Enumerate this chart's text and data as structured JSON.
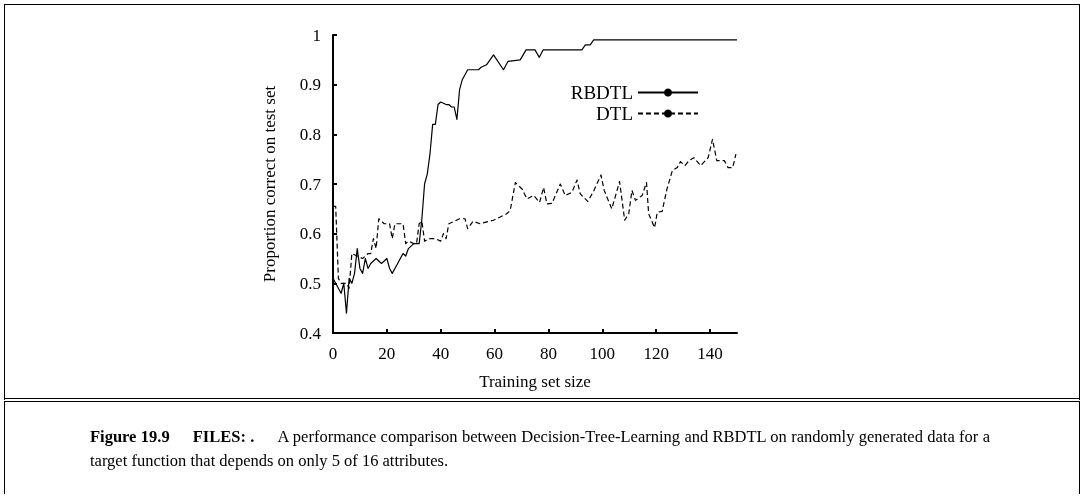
{
  "chart_data": {
    "type": "line",
    "xlabel": "Training set size",
    "ylabel": "Proportion correct on test set",
    "xlim": [
      0,
      150
    ],
    "xticks": [
      0,
      20,
      40,
      60,
      80,
      100,
      120,
      140
    ],
    "ylim": [
      0.4,
      1
    ],
    "yticks": [
      0.4,
      0.5,
      0.6,
      0.7,
      0.8,
      0.9,
      1
    ],
    "grid": false,
    "legend": "top right",
    "marker": "none",
    "series": [
      {
        "name": "RBDTL",
        "color": "#000000",
        "line_style": "solid",
        "x": [
          0,
          2,
          3,
          4,
          5,
          6,
          7,
          8,
          9,
          10,
          11,
          12,
          13,
          14,
          16,
          18,
          20,
          21,
          22,
          24,
          25,
          26,
          27,
          28,
          30,
          32,
          33,
          34,
          35,
          36,
          37,
          38,
          39,
          40,
          42,
          43,
          44,
          45,
          46,
          47,
          48,
          50,
          52,
          54,
          55,
          57,
          59.6,
          63.3,
          65,
          69.5,
          71.7,
          75,
          76.6,
          78,
          92.4,
          93.7,
          95.5,
          96.8,
          150
        ],
        "values": [
          0.51,
          0.49,
          0.48,
          0.5,
          0.44,
          0.51,
          0.5,
          0.52,
          0.57,
          0.53,
          0.52,
          0.55,
          0.53,
          0.54,
          0.55,
          0.54,
          0.55,
          0.53,
          0.52,
          0.54,
          0.55,
          0.56,
          0.555,
          0.57,
          0.58,
          0.58,
          0.63,
          0.7,
          0.72,
          0.76,
          0.82,
          0.82,
          0.86,
          0.865,
          0.86,
          0.86,
          0.855,
          0.855,
          0.83,
          0.89,
          0.91,
          0.93,
          0.93,
          0.93,
          0.935,
          0.94,
          0.96,
          0.93,
          0.947,
          0.95,
          0.97,
          0.97,
          0.955,
          0.97,
          0.97,
          0.98,
          0.98,
          0.99,
          0.99
        ]
      },
      {
        "name": "DTL",
        "color": "#000000",
        "line_style": "dashed",
        "x": [
          0,
          1,
          2,
          3,
          5,
          6,
          7,
          9,
          11,
          13,
          14,
          15,
          16,
          17,
          19,
          21,
          22,
          23,
          25,
          26,
          27,
          28,
          30,
          31,
          32,
          33,
          34,
          36,
          38,
          40,
          41,
          42,
          43,
          45,
          47,
          49,
          50,
          52,
          54.6,
          59.6,
          64.5,
          65.8,
          67.7,
          70.2,
          72,
          74.5,
          76.7,
          78.2,
          79.4,
          81.3,
          84.4,
          86.2,
          88.7,
          90.6,
          91.8,
          94.6,
          96.7,
          99.5,
          100.7,
          103.5,
          106.4,
          108.3,
          109.8,
          111,
          112.3,
          114.8,
          116.4,
          117.2,
          119.4,
          120.4,
          122.2,
          124,
          126,
          127.8,
          129,
          130.6,
          132.2,
          134,
          136.5,
          139.3,
          140.9,
          142.5,
          145.3,
          146.7,
          148.4,
          149.6
        ],
        "values": [
          0.655,
          0.655,
          0.51,
          0.5,
          0.5,
          0.49,
          0.56,
          0.555,
          0.55,
          0.56,
          0.56,
          0.59,
          0.57,
          0.63,
          0.62,
          0.62,
          0.59,
          0.62,
          0.62,
          0.62,
          0.58,
          0.585,
          0.58,
          0.58,
          0.62,
          0.625,
          0.585,
          0.59,
          0.59,
          0.585,
          0.6,
          0.59,
          0.62,
          0.625,
          0.63,
          0.63,
          0.61,
          0.625,
          0.62,
          0.627,
          0.64,
          0.647,
          0.703,
          0.69,
          0.67,
          0.677,
          0.663,
          0.693,
          0.66,
          0.661,
          0.7,
          0.677,
          0.683,
          0.708,
          0.68,
          0.665,
          0.685,
          0.718,
          0.687,
          0.65,
          0.705,
          0.627,
          0.64,
          0.687,
          0.667,
          0.677,
          0.703,
          0.64,
          0.612,
          0.643,
          0.645,
          0.69,
          0.727,
          0.733,
          0.745,
          0.737,
          0.747,
          0.753,
          0.737,
          0.753,
          0.79,
          0.747,
          0.747,
          0.733,
          0.733,
          0.76
        ]
      }
    ],
    "annotations": [
      "Figure 19.9",
      "FILES: .",
      "A performance comparison between Decision-Tree-Learning and RBDTL on randomly generated data for a target function that depends on only 5 of 16 attributes."
    ]
  }
}
